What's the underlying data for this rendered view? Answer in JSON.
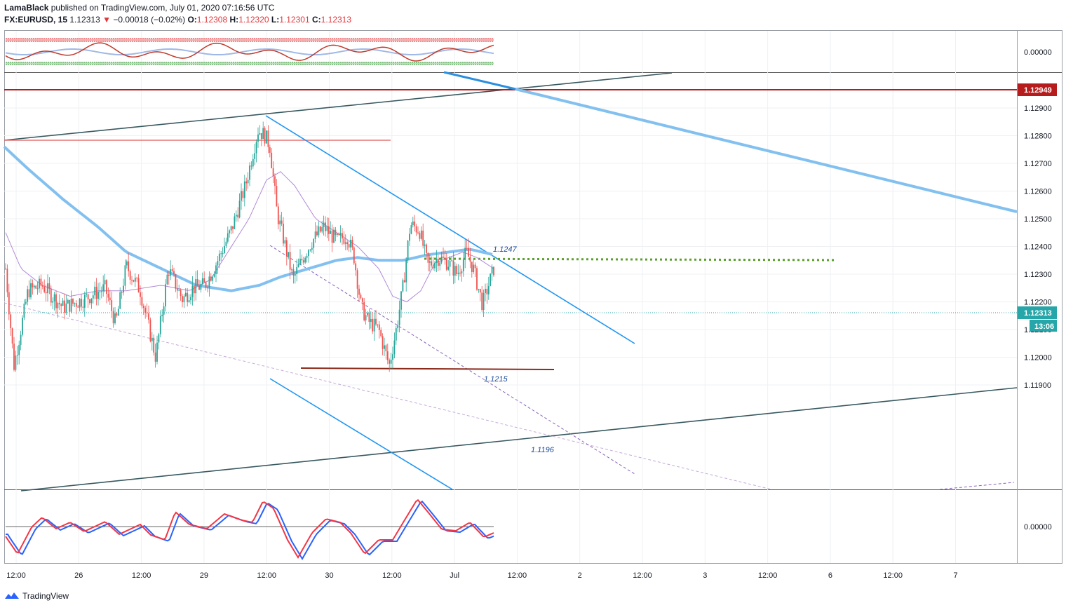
{
  "header": {
    "author": "LamaBlack",
    "published": "published on TradingView.com, July 01, 2020 07:16:56 UTC",
    "symbol": "FX:EURUSD, 15",
    "last": "1.12313",
    "arrow": "▼",
    "change": "−0.00018 (−0.02%)",
    "o_label": "O:",
    "o_value": "1.12308",
    "h_label": "H:",
    "h_value": "1.12320",
    "l_label": "L:",
    "l_value": "1.12301",
    "c_label": "C:",
    "c_value": "1.12313"
  },
  "chart_data": {
    "type": "candlestick",
    "symbol": "FX:EURUSD",
    "interval": "15",
    "price_axis": {
      "ticks": [
        "1.12900",
        "1.12800",
        "1.12700",
        "1.12600",
        "1.12500",
        "1.12400",
        "1.12300",
        "1.12200",
        "1.12100",
        "1.12000",
        "1.11900"
      ],
      "ylim": [
        1.1182,
        1.1302
      ]
    },
    "time_axis": {
      "ticks": [
        "12:00",
        "26",
        "12:00",
        "29",
        "12:00",
        "30",
        "12:00",
        "Jul",
        "12:00",
        "2",
        "12:00",
        "3",
        "12:00",
        "6",
        "12:00",
        "7"
      ]
    },
    "price_badges": [
      {
        "text": "1.12949",
        "value": 1.12949,
        "color": "#b71c1c"
      },
      {
        "text": "1.12313",
        "value": 1.12313,
        "color": "#26a6a8"
      },
      {
        "text": "13:06",
        "color": "#26a6a8"
      }
    ],
    "annotations": [
      {
        "text": "1.1247"
      },
      {
        "text": "1.1215"
      },
      {
        "text": "1.1196"
      }
    ],
    "top_oscillator": {
      "ticks": [
        "0.00000"
      ]
    },
    "bottom_oscillator": {
      "ticks": [
        "0.00000"
      ],
      "series": [
        {
          "color": "#2962ff"
        },
        {
          "color": "#f23645"
        }
      ]
    },
    "colors": {
      "up": "#26a69a",
      "down": "#ef5350",
      "ma_slow": "#82c0f0",
      "ma_fast": "#b28ad8",
      "trend": "#2196f3",
      "channel": "#37595f",
      "resistance": "#b71c1c"
    }
  },
  "footer": {
    "brand": "TradingView"
  }
}
